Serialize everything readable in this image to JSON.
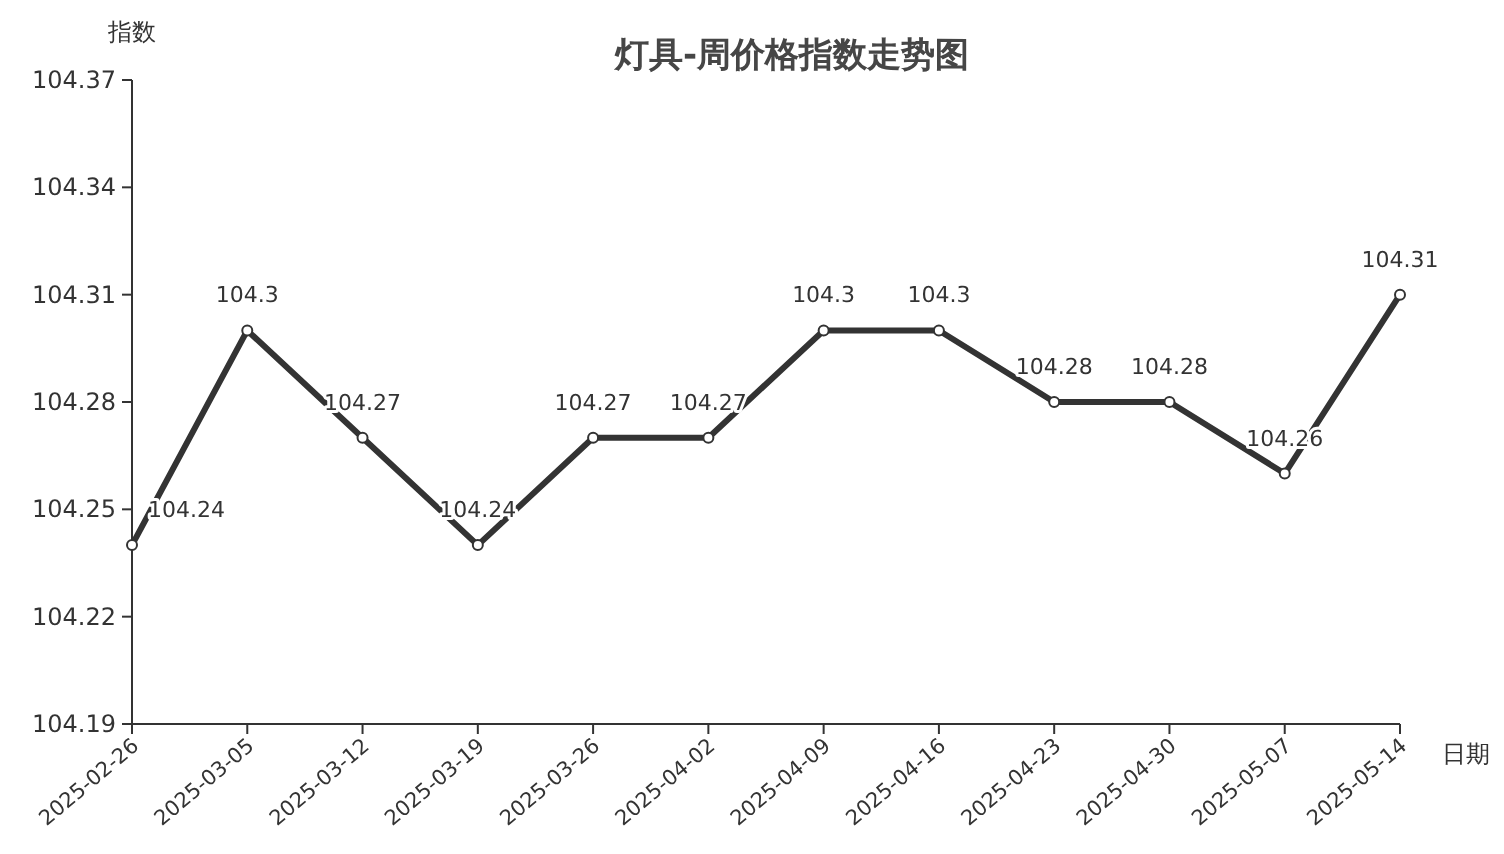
{
  "chart_data": {
    "type": "line",
    "title": "灯具-周价格指数走势图",
    "xlabel": "日期",
    "ylabel": "指数",
    "categories": [
      "2025-02-26",
      "2025-03-05",
      "2025-03-12",
      "2025-03-19",
      "2025-03-26",
      "2025-04-02",
      "2025-04-09",
      "2025-04-16",
      "2025-04-23",
      "2025-04-30",
      "2025-05-07",
      "2025-05-14"
    ],
    "values": [
      104.24,
      104.3,
      104.27,
      104.24,
      104.27,
      104.27,
      104.3,
      104.3,
      104.28,
      104.28,
      104.26,
      104.31
    ],
    "color": "#333333",
    "marker": "circle",
    "line_style": "solid",
    "data_labels": true,
    "grid": false,
    "ylim": [
      104.19,
      104.37
    ],
    "yticks": [
      104.19,
      104.22,
      104.25,
      104.28,
      104.31,
      104.34,
      104.37
    ]
  }
}
